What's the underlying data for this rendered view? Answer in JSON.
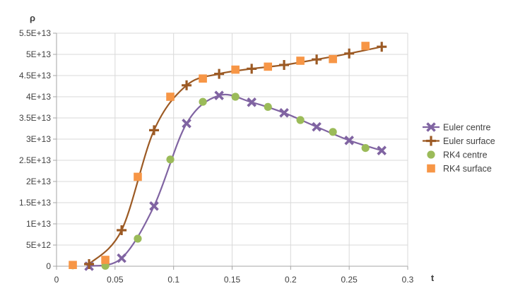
{
  "chart_data": {
    "type": "scatter",
    "xlabel": "t",
    "ylabel": "ρ",
    "xlim": [
      0,
      0.3
    ],
    "ylim": [
      0,
      55000000000000.0
    ],
    "x_ticks": [
      0,
      0.05,
      0.1,
      0.15,
      0.2,
      0.25,
      0.3
    ],
    "x_tick_labels": [
      "0",
      "0.05",
      "0.1",
      "0.15",
      "0.2",
      "0.25",
      "0.3"
    ],
    "y_ticks": [
      0,
      5000000000000.0,
      10000000000000.0,
      15000000000000.0,
      20000000000000.0,
      25000000000000.0,
      30000000000000.0,
      35000000000000.0,
      40000000000000.0,
      45000000000000.0,
      50000000000000.0,
      55000000000000.0
    ],
    "y_tick_labels": [
      "0",
      "5E+12",
      "1E+13",
      "1.5E+13",
      "2E+13",
      "2.5E+13",
      "3E+13",
      "3.5E+13",
      "4E+13",
      "4.5E+13",
      "5E+13",
      "5.5E+13"
    ],
    "grid": {
      "x": true,
      "y": true
    },
    "smooth_lines": true,
    "legend_position": "right",
    "series": [
      {
        "name": "Euler centre",
        "color": "#8064a2",
        "marker": "x",
        "x": [
          0.0278,
          0.0556,
          0.0833,
          0.1111,
          0.1389,
          0.1667,
          0.1944,
          0.2222,
          0.25,
          0.2778
        ],
        "y": [
          0,
          1900000000000.0,
          14200000000000.0,
          33700000000000.0,
          40300000000000.0,
          38700000000000.0,
          36200000000000.0,
          32900000000000.0,
          29700000000000.0,
          27300000000000.0
        ]
      },
      {
        "name": "Euler surface",
        "color": "#9c5a24",
        "marker": "plus",
        "x": [
          0.0278,
          0.0556,
          0.0833,
          0.1111,
          0.1389,
          0.1667,
          0.1944,
          0.2222,
          0.25,
          0.2778
        ],
        "y": [
          500000000000.0,
          8500000000000.0,
          32100000000000.0,
          42700000000000.0,
          45400000000000.0,
          46600000000000.0,
          47500000000000.0,
          48800000000000.0,
          50200000000000.0,
          51800000000000.0
        ]
      },
      {
        "name": "RK4 centre",
        "color": "#9bbb59",
        "marker": "circle",
        "x": [
          0.0139,
          0.0417,
          0.0694,
          0.0972,
          0.125,
          0.1528,
          0.1806,
          0.2083,
          0.2361,
          0.2639
        ],
        "y": [
          200000000000.0,
          100000000000.0,
          6500000000000.0,
          25200000000000.0,
          38800000000000.0,
          40000000000000.0,
          37600000000000.0,
          34500000000000.0,
          31700000000000.0,
          27900000000000.0
        ]
      },
      {
        "name": "RK4 surface",
        "color": "#f79646",
        "marker": "square",
        "x": [
          0.0139,
          0.0417,
          0.0694,
          0.0972,
          0.125,
          0.1528,
          0.1806,
          0.2083,
          0.2361,
          0.2639
        ],
        "y": [
          300000000000.0,
          1500000000000.0,
          21100000000000.0,
          40000000000000.0,
          44300000000000.0,
          46400000000000.0,
          47100000000000.0,
          48500000000000.0,
          48900000000000.0,
          52000000000000.0
        ]
      }
    ]
  }
}
